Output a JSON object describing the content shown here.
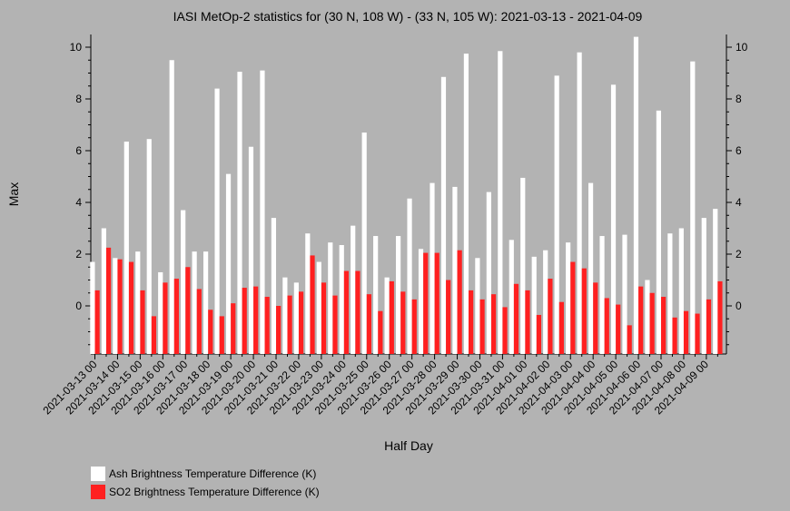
{
  "chart_data": {
    "type": "bar",
    "title": "IASI MetOp-2 statistics for (30 N, 108 W) - (33 N, 105 W): 2021-03-13 - 2021-04-09",
    "xlabel": "Half Day",
    "ylabel": "Max",
    "ylim": [
      -1.8,
      10.4
    ],
    "yticks": [
      0,
      2,
      4,
      6,
      8,
      10
    ],
    "grid": false,
    "legend_position": "bottom-left",
    "x_tick_labels": [
      "2021-03-13 00",
      "2021-03-14 00",
      "2021-03-15 00",
      "2021-03-16 00",
      "2021-03-17 00",
      "2021-03-18 00",
      "2021-03-19 00",
      "2021-03-20 00",
      "2021-03-21 00",
      "2021-03-22 00",
      "2021-03-23 00",
      "2021-03-24 00",
      "2021-03-25 00",
      "2021-03-26 00",
      "2021-03-27 00",
      "2021-03-28 00",
      "2021-03-29 00",
      "2021-03-30 00",
      "2021-03-31 00",
      "2021-04-01 00",
      "2021-04-02 00",
      "2021-04-03 00",
      "2021-04-04 00",
      "2021-04-05 00",
      "2021-04-06 00",
      "2021-04-07 00",
      "2021-04-08 00",
      "2021-04-09 00"
    ],
    "series": [
      {
        "name": "Ash Brightness Temperature Difference (K)",
        "color": "#ffffff",
        "values": [
          1.7,
          3.0,
          1.85,
          6.35,
          2.1,
          6.45,
          1.3,
          9.5,
          3.7,
          2.1,
          2.1,
          8.4,
          5.1,
          9.05,
          6.15,
          9.1,
          3.4,
          1.1,
          0.9,
          2.8,
          1.7,
          2.45,
          2.35,
          3.1,
          6.7,
          2.7,
          1.1,
          2.7,
          4.15,
          2.2,
          4.75,
          8.85,
          4.6,
          9.75,
          1.85,
          4.4,
          9.85,
          2.55,
          4.95,
          1.9,
          2.15,
          8.9,
          2.45,
          9.8,
          4.75,
          2.7,
          8.55,
          2.75,
          10.4,
          1.0,
          7.55,
          2.8,
          3.0,
          9.45,
          3.4,
          3.75
        ]
      },
      {
        "name": "SO2 Brightness Temperature Difference (K)",
        "color": "#ff2020",
        "values": [
          0.6,
          2.25,
          1.8,
          1.7,
          0.6,
          -0.4,
          0.9,
          1.05,
          1.5,
          0.65,
          -0.15,
          -0.4,
          0.1,
          0.7,
          0.75,
          0.35,
          0.0,
          0.4,
          0.55,
          1.95,
          0.9,
          0.4,
          1.35,
          1.35,
          0.45,
          -0.2,
          0.95,
          0.55,
          0.25,
          2.05,
          2.05,
          1.0,
          2.15,
          0.6,
          0.25,
          0.45,
          -0.05,
          0.85,
          0.6,
          -0.35,
          1.05,
          0.15,
          1.7,
          1.45,
          0.9,
          0.3,
          0.05,
          -0.75,
          0.75,
          0.5,
          0.35,
          -0.45,
          -0.2,
          -0.3,
          0.25,
          0.95
        ]
      }
    ]
  }
}
